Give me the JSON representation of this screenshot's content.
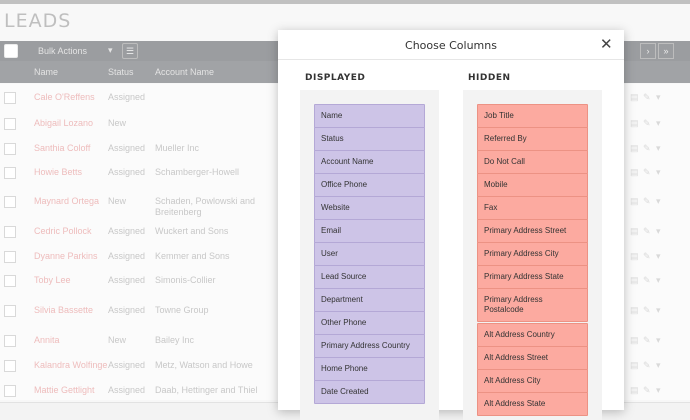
{
  "page": {
    "title": "LEADS",
    "bulk_actions": "Bulk Actions",
    "columns": {
      "name": "Name",
      "status": "Status",
      "account": "Account Name"
    }
  },
  "rows": [
    {
      "name": "Cale O'Reffens",
      "status": "Assigned",
      "account": ""
    },
    {
      "name": "Abigail Lozano",
      "status": "New",
      "account": ""
    },
    {
      "name": "Santhia Coloff",
      "status": "Assigned",
      "account": "Mueller Inc"
    },
    {
      "name": "Howie Betts",
      "status": "Assigned",
      "account": "Schamberger-Howell"
    },
    {
      "name": "Maynard Ortega",
      "status": "New",
      "account": "Schaden, Powlowski and Breitenberg"
    },
    {
      "name": "Cedric Pollock",
      "status": "Assigned",
      "account": "Wuckert and Sons"
    },
    {
      "name": "Dyanne Parkins",
      "status": "Assigned",
      "account": "Kemmer and Sons"
    },
    {
      "name": "Toby Lee",
      "status": "Assigned",
      "account": "Simonis-Collier"
    },
    {
      "name": "Silvia Bassette",
      "status": "Assigned",
      "account": "Towne Group"
    },
    {
      "name": "Annita",
      "status": "New",
      "account": "Bailey Inc"
    },
    {
      "name": "Kalandra Wolfinge",
      "status": "Assigned",
      "account": "Metz, Watson and Howe"
    },
    {
      "name": "Mattie Gettlight",
      "status": "Assigned",
      "account": "Daab, Hettinger and Thiel"
    }
  ],
  "modal": {
    "title": "Choose Columns",
    "close_icon": "close-icon",
    "displayed_title": "DISPLAYED",
    "hidden_title": "HIDDEN",
    "displayed": [
      "Name",
      "Status",
      "Account Name",
      "Office Phone",
      "Website",
      "Email",
      "User",
      "Lead Source",
      "Department",
      "Other Phone",
      "Primary Address Country",
      "Home Phone",
      "Date Created"
    ],
    "hidden": [
      "Job Title",
      "Referred By",
      "Do Not Call",
      "Mobile",
      "Fax",
      "Primary Address Street",
      "Primary Address City",
      "Primary Address State",
      "Primary Address Postalcode",
      "Alt Address Country",
      "Alt Address Street",
      "Alt Address City",
      "Alt Address State"
    ]
  },
  "colors": {
    "displayed_chip": "#cdc4e7",
    "hidden_chip": "#fcaaa0"
  }
}
